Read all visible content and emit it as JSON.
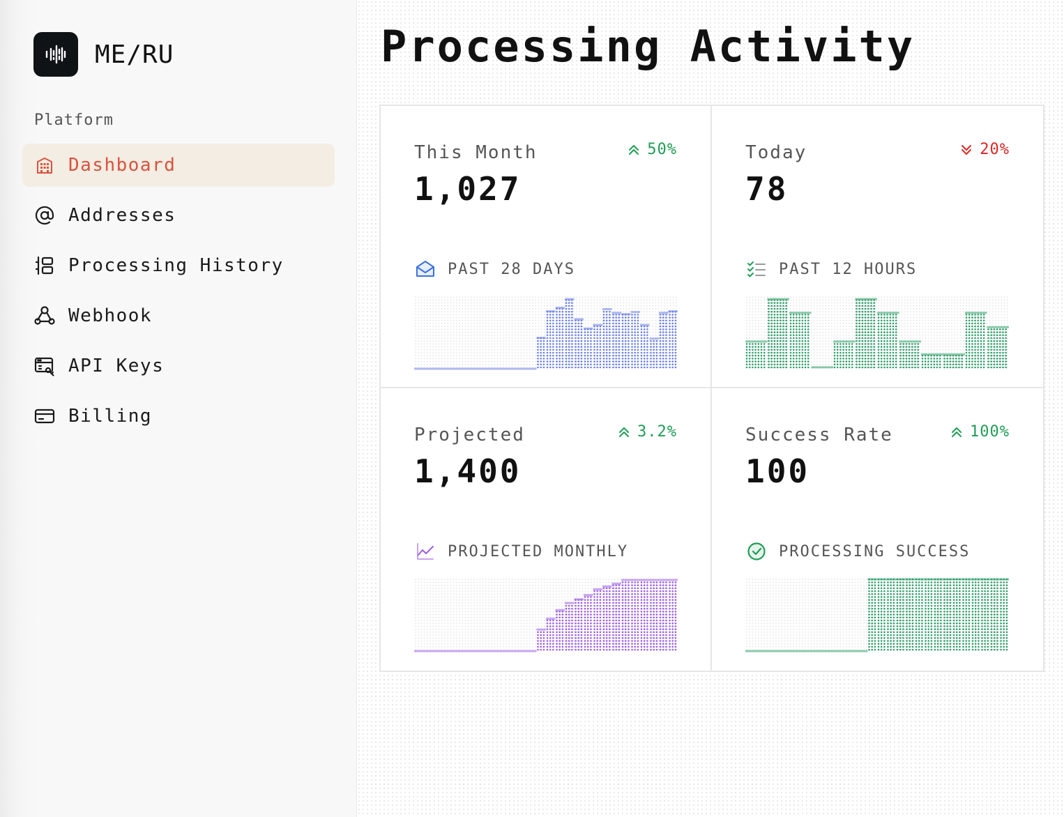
{
  "brand": {
    "name": "ME/RU",
    "logo_icon": "waveform-icon"
  },
  "sidebar": {
    "section_label": "Platform",
    "items": [
      {
        "label": "Dashboard",
        "icon": "building-icon",
        "active": true
      },
      {
        "label": "Addresses",
        "icon": "at-icon",
        "active": false
      },
      {
        "label": "Processing History",
        "icon": "history-layout-icon",
        "active": false
      },
      {
        "label": "Webhook",
        "icon": "webhook-icon",
        "active": false
      },
      {
        "label": "API Keys",
        "icon": "api-key-icon",
        "active": false
      },
      {
        "label": "Billing",
        "icon": "credit-card-icon",
        "active": false
      }
    ]
  },
  "main": {
    "title": "Processing Activity"
  },
  "cards": [
    {
      "label": "This Month",
      "value": "1,027",
      "delta": "50%",
      "direction": "up",
      "caption": "PAST 28 DAYS",
      "caption_icon": "mail-open-icon",
      "color": "#6b7fe6"
    },
    {
      "label": "Today",
      "value": "78",
      "delta": "20%",
      "direction": "down",
      "caption": "PAST 12 HOURS",
      "caption_icon": "checklist-icon",
      "color": "#2e9e68"
    },
    {
      "label": "Projected",
      "value": "1,400",
      "delta": "3.2%",
      "direction": "up",
      "caption": "PROJECTED MONTHLY",
      "caption_icon": "trend-chart-icon",
      "color": "#9b5de5"
    },
    {
      "label": "Success Rate",
      "value": "100",
      "delta": "100%",
      "direction": "up",
      "caption": "PROCESSING SUCCESS",
      "caption_icon": "check-circle-icon",
      "color": "#2e9e68"
    }
  ],
  "chart_data": [
    {
      "type": "bar",
      "title": "This Month",
      "values": [
        0,
        0,
        0,
        0,
        0,
        0,
        0,
        0,
        0,
        0,
        0,
        0,
        0,
        0.43,
        0.8,
        0.85,
        0.97,
        0.69,
        0.56,
        0.61,
        0.83,
        0.78,
        0.76,
        0.79,
        0.61,
        0.42,
        0.78,
        0.8
      ]
    },
    {
      "type": "bar",
      "title": "Today",
      "values": [
        0.38,
        0.97,
        0.78,
        0.02,
        0.38,
        0.97,
        0.78,
        0.38,
        0.2,
        0.2,
        0.78,
        0.58
      ]
    },
    {
      "type": "bar",
      "title": "Projected",
      "values": [
        0,
        0,
        0,
        0,
        0,
        0,
        0,
        0,
        0,
        0,
        0,
        0,
        0,
        0.3,
        0.45,
        0.57,
        0.67,
        0.72,
        0.78,
        0.86,
        0.9,
        0.94,
        0.99,
        0.99,
        0.99,
        0.99,
        0.99,
        0.99
      ]
    },
    {
      "type": "bar",
      "title": "Success Rate",
      "values": [
        0,
        0,
        0,
        0,
        0,
        0,
        0,
        0,
        0,
        0,
        0,
        0,
        0,
        1,
        1,
        1,
        1,
        1,
        1,
        1,
        1,
        1,
        1,
        1,
        1,
        1,
        1,
        1
      ]
    }
  ]
}
